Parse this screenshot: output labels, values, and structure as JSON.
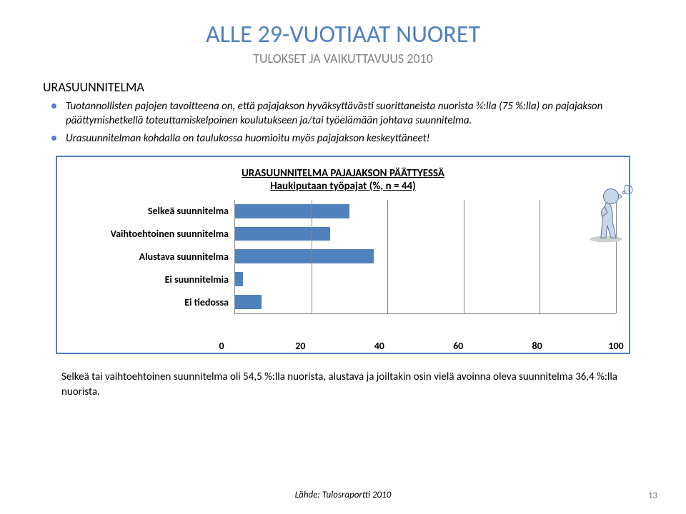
{
  "title": "ALLE 29-VUOTIAAT NUORET",
  "subtitle": "TULOKSET JA VAIKUTTAVUUS 2010",
  "section_title": "URASUUNNITELMA",
  "bullets": [
    "Tuotannollisten pajojen tavoitteena on, että pajajakson hyväksyttävästi suorittaneista nuorista ¾:lla (75 %:lla) on pajajakson päättymishetkellä toteuttamiskelpoinen koulutukseen ja/tai työelämään johtava suunnitelma.",
    "Urasuunnitelman kohdalla on taulukossa huomioitu myös pajajakson keskeyttäneet!"
  ],
  "chart": {
    "type": "bar-horizontal",
    "title1": "URASUUNNITELMA PAJAJAKSON PÄÄTTYESSÄ",
    "title2": "Haukiputaan työpajat (%,  n = 44)",
    "categories": [
      "Selkeä suunnitelma",
      "Vaihtoehtoinen suunnitelma",
      "Alustava suunnitelma",
      "Ei suunnitelmia",
      "Ei tiedossa"
    ],
    "values": [
      30,
      25,
      36.4,
      2,
      7
    ],
    "xlim": [
      0,
      100
    ],
    "xtick_step": 20,
    "xticks": [
      0,
      20,
      40,
      60,
      80,
      100
    ],
    "bar_color": "#4f81bd",
    "grid_color": "#888888",
    "border_color": "#4f81bd",
    "label_fontsize": 14,
    "label_fontweight": "700",
    "tick_fontsize": 14,
    "tick_fontweight": "700",
    "title_fontsize": 15,
    "background_color": "#ffffff"
  },
  "result_text": "Selkeä tai vaihtoehtoinen suunnitelma oli 54,5 %:lla nuorista, alustava ja joiltakin osin vielä avoinna oleva suunnitelma 36,4 %:lla nuorista.",
  "source": "Lähde: Tulosraportti 2010",
  "page_number": "13",
  "colors": {
    "accent": "#4f81bd",
    "subtitle_gray": "#808080",
    "page_gray": "#808080"
  }
}
